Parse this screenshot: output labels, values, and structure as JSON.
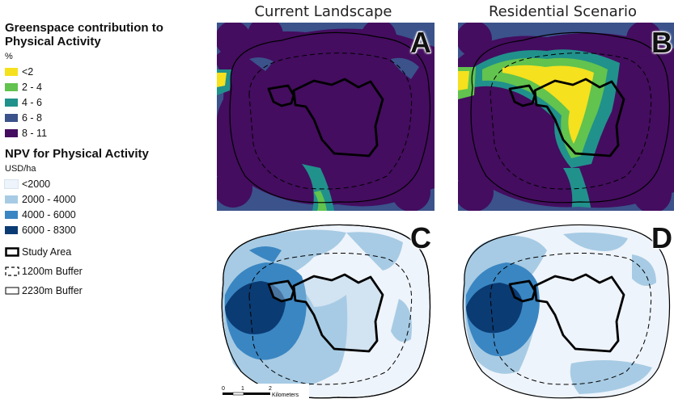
{
  "columns": [
    "Current Landscape",
    "Residential Scenario"
  ],
  "panels": [
    {
      "letter": "A",
      "layer": "greenspace_contribution",
      "scenario": "Current Landscape"
    },
    {
      "letter": "B",
      "layer": "greenspace_contribution",
      "scenario": "Residential Scenario"
    },
    {
      "letter": "C",
      "layer": "npv",
      "scenario": "Current Landscape"
    },
    {
      "letter": "D",
      "layer": "npv",
      "scenario": "Residential Scenario"
    }
  ],
  "legend": {
    "greenspace": {
      "title_line1": "Greenspace contribution to",
      "title_line2": "Physical Activity",
      "unit": "%",
      "classes": [
        {
          "label": "<2",
          "color": "#f5e11e"
        },
        {
          "label": "2 - 4",
          "color": "#62c34e"
        },
        {
          "label": "4 - 6",
          "color": "#21918c"
        },
        {
          "label": "6 - 8",
          "color": "#3b528b"
        },
        {
          "label": "8 - 11",
          "color": "#440d5f"
        }
      ]
    },
    "npv": {
      "title": "NPV for Physical Activity",
      "unit": "USD/ha",
      "classes": [
        {
          "label": "<2000",
          "color": "#eef4fb"
        },
        {
          "label": "2000 - 4000",
          "color": "#a7cbe4"
        },
        {
          "label": "4000 - 6000",
          "color": "#3a86c2"
        },
        {
          "label": "6000 - 8300",
          "color": "#0b3b73"
        }
      ]
    },
    "boundaries": [
      {
        "label": "Study Area",
        "style": "thick-solid"
      },
      {
        "label": "1200m Buffer",
        "style": "dashed"
      },
      {
        "label": "2230m Buffer",
        "style": "thin-solid"
      }
    ]
  },
  "scalebar": {
    "ticks": [
      "0",
      "1",
      "2"
    ],
    "unit": "Kilometers"
  }
}
